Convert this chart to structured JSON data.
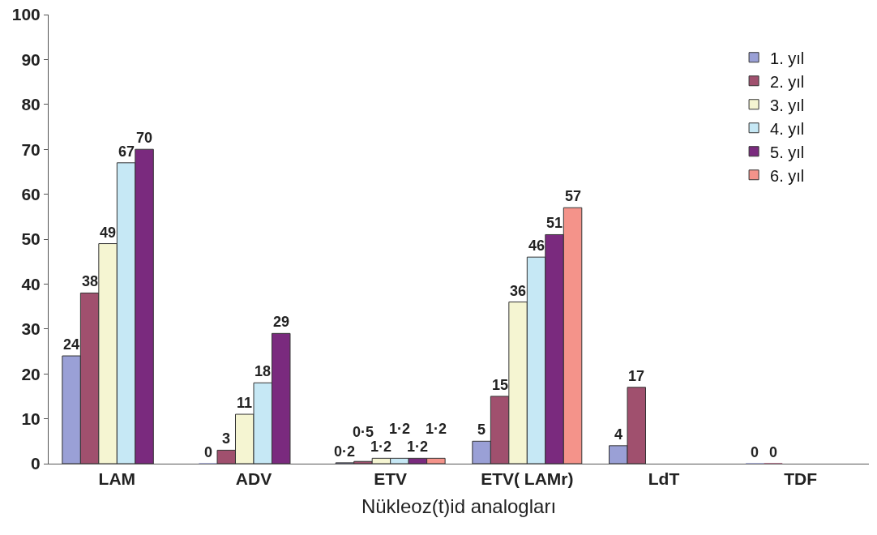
{
  "chart_data": {
    "type": "bar",
    "xlabel": "Nükleoz(t)id analogları",
    "categories": [
      "LAM",
      "ADV",
      "ETV",
      "ETV( LAMr)",
      "LdT",
      "TDF"
    ],
    "series": [
      {
        "name": "1. yıl",
        "color": "#9aa0d6",
        "values": [
          24,
          0,
          0.2,
          5,
          4,
          0
        ],
        "value_labels": [
          "24",
          "0",
          "0·2",
          "5",
          "4",
          "0"
        ]
      },
      {
        "name": "2. yıl",
        "color": "#a0506e",
        "values": [
          38,
          3,
          0.5,
          15,
          17,
          0
        ],
        "value_labels": [
          "38",
          "3",
          "0·5",
          "15",
          "17",
          "0"
        ]
      },
      {
        "name": "3. yıl",
        "color": "#f5f5d2",
        "values": [
          49,
          11,
          1.2,
          36,
          null,
          null
        ],
        "value_labels": [
          "49",
          "11",
          "1·2",
          "36",
          null,
          null
        ]
      },
      {
        "name": "4. yıl",
        "color": "#c6e8f5",
        "values": [
          67,
          18,
          1.2,
          46,
          null,
          null
        ],
        "value_labels": [
          "67",
          "18",
          "1·2",
          "46",
          null,
          null
        ]
      },
      {
        "name": "5. yıl",
        "color": "#7a2a7e",
        "values": [
          70,
          29,
          1.2,
          51,
          null,
          null
        ],
        "value_labels": [
          "70",
          "29",
          "1·2",
          "51",
          null,
          null
        ]
      },
      {
        "name": "6. yıl",
        "color": "#f4938a",
        "values": [
          null,
          null,
          1.2,
          57,
          null,
          null
        ],
        "value_labels": [
          null,
          null,
          "1·2",
          "57",
          null,
          null
        ]
      }
    ],
    "ylim": [
      0,
      100
    ],
    "yticks": [
      0,
      10,
      20,
      30,
      40,
      50,
      60,
      70,
      80,
      90,
      100
    ],
    "grid": false,
    "legend": "top right"
  }
}
